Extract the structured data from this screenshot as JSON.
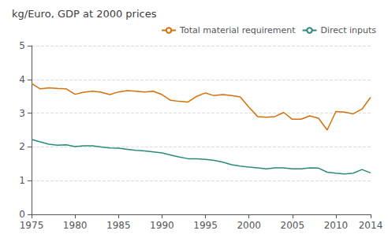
{
  "chart_data": {
    "type": "line",
    "title": "kg/Euro, GDP at 2000 prices",
    "x": [
      1975,
      1976,
      1977,
      1978,
      1979,
      1980,
      1981,
      1982,
      1983,
      1984,
      1985,
      1986,
      1987,
      1988,
      1989,
      1990,
      1991,
      1992,
      1993,
      1994,
      1995,
      1996,
      1997,
      1998,
      1999,
      2000,
      2001,
      2002,
      2003,
      2004,
      2005,
      2006,
      2007,
      2008,
      2009,
      2010,
      2011,
      2012,
      2013,
      2014
    ],
    "series": [
      {
        "name": "Total material requirement",
        "color": "#D4700A",
        "values": [
          3.88,
          3.72,
          3.75,
          3.73,
          3.72,
          3.56,
          3.62,
          3.65,
          3.62,
          3.55,
          3.63,
          3.67,
          3.65,
          3.63,
          3.65,
          3.55,
          3.38,
          3.35,
          3.33,
          3.5,
          3.6,
          3.52,
          3.55,
          3.52,
          3.48,
          3.18,
          2.9,
          2.88,
          2.9,
          3.02,
          2.82,
          2.82,
          2.92,
          2.85,
          2.5,
          3.05,
          3.03,
          2.98,
          3.12,
          3.47
        ]
      },
      {
        "name": "Direct inputs",
        "color": "#2A8A7A",
        "values": [
          2.22,
          2.15,
          2.08,
          2.05,
          2.06,
          2.01,
          2.03,
          2.03,
          2.0,
          1.97,
          1.96,
          1.93,
          1.9,
          1.88,
          1.85,
          1.82,
          1.76,
          1.7,
          1.65,
          1.65,
          1.63,
          1.6,
          1.55,
          1.47,
          1.43,
          1.4,
          1.38,
          1.35,
          1.38,
          1.38,
          1.35,
          1.35,
          1.38,
          1.37,
          1.25,
          1.22,
          1.2,
          1.22,
          1.33,
          1.23
        ]
      }
    ],
    "xlim": [
      1975,
      2014
    ],
    "xticks": [
      1975,
      1980,
      1985,
      1990,
      1995,
      2000,
      2005,
      2010,
      2014
    ],
    "ylim": [
      0,
      5
    ],
    "yticks": [
      0,
      1,
      2,
      3,
      4,
      5
    ],
    "grid": true,
    "legend": "upper right"
  }
}
